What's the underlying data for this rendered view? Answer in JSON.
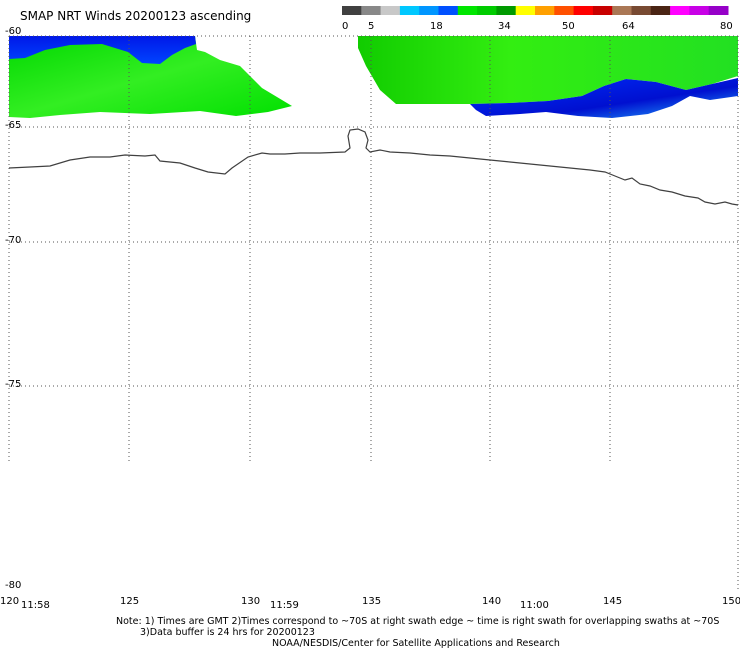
{
  "header": {
    "title": "SMAP NRT Winds 20200123 ascending"
  },
  "colorbar": {
    "ticks": [
      "0",
      "5",
      "18",
      "34",
      "50",
      "64",
      "80"
    ],
    "segments": [
      {
        "color": "#404040"
      },
      {
        "color": "#888888"
      },
      {
        "color": "#c8c8c8"
      },
      {
        "color": "#00c8ff"
      },
      {
        "color": "#0096ff"
      },
      {
        "color": "#0050ff"
      },
      {
        "color": "#00e600"
      },
      {
        "color": "#00cc00"
      },
      {
        "color": "#009a00"
      },
      {
        "color": "#ffff00"
      },
      {
        "color": "#ffa000"
      },
      {
        "color": "#ff5000"
      },
      {
        "color": "#ff0000"
      },
      {
        "color": "#c80000"
      },
      {
        "color": "#aa7755"
      },
      {
        "color": "#784a32"
      },
      {
        "color": "#4a2414"
      },
      {
        "color": "#ff00ff"
      },
      {
        "color": "#c800e6"
      },
      {
        "color": "#9600c8"
      }
    ]
  },
  "map": {
    "lat_labels": [
      "-60",
      "-65",
      "-70",
      "-75",
      "-80"
    ],
    "lon_labels": [
      "120",
      "125",
      "130",
      "135",
      "140",
      "145",
      "150"
    ],
    "time_labels": [
      "11:58",
      "11:59",
      "11:00"
    ],
    "colors": {
      "green": "#00e600",
      "blue": "#0028ff",
      "coast": "#404040"
    }
  },
  "notes": {
    "line1": "Note: 1) Times are GMT 2)Times correspond to ~70S at right swath edge ~ time is right swath for overlapping swaths at ~70S",
    "line2": "3)Data buffer is 24 hrs for 20200123",
    "line3": "NOAA/NESDIS/Center for Satellite Applications and Research"
  }
}
